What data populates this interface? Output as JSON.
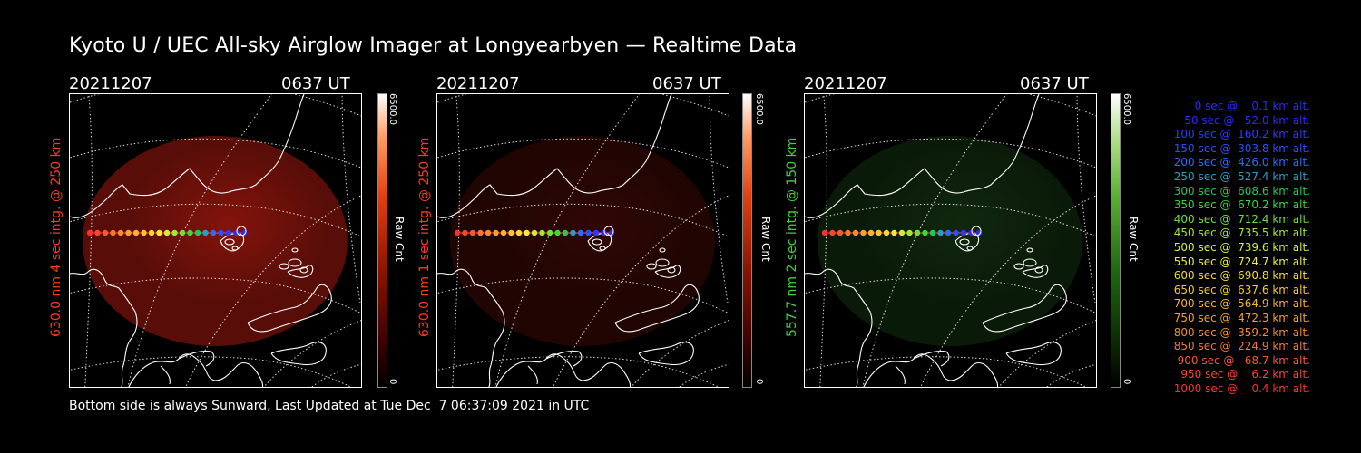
{
  "title": "Kyoto U / UEC All-sky Airglow Imager at Longyearbyen — Realtime Data",
  "footer": "Bottom side is always Sunward, Last Updated at Tue Dec  7 06:37:09 2021 in UTC",
  "colors": {
    "red_channel": "#ff3b1e",
    "green_channel": "#3fd13f",
    "background": "#000000"
  },
  "panels": [
    {
      "date": "20211207",
      "time": "0637 UT",
      "ylabel": "630.0 nm 4 sec intg. @ 250 km",
      "colorbar_max": "6500.0",
      "colorbar_min": "0",
      "colorbar_label": "Raw Cnt",
      "channel": "red",
      "brightness": 0.55
    },
    {
      "date": "20211207",
      "time": "0637 UT",
      "ylabel": "630.0 nm 1 sec intg. @ 250 km",
      "colorbar_max": "6500.0",
      "colorbar_min": "0",
      "colorbar_label": "Raw Cnt",
      "channel": "red",
      "brightness": 0.2
    },
    {
      "date": "20211207",
      "time": "0637 UT",
      "ylabel": "557.7 nm 2 sec intg. @ 150 km",
      "colorbar_max": "6500.0",
      "colorbar_min": "0",
      "colorbar_label": "Raw Cnt",
      "channel": "green",
      "brightness": 0.22
    }
  ],
  "legend": [
    {
      "text": "   0 sec @    0.1 km alt.",
      "color": "#2a2aff"
    },
    {
      "text": "  50 sec @   52.0 km alt.",
      "color": "#2a2aff"
    },
    {
      "text": " 100 sec @  160.2 km alt.",
      "color": "#2a3cff"
    },
    {
      "text": " 150 sec @  303.8 km alt.",
      "color": "#2a50ff"
    },
    {
      "text": " 200 sec @  426.0 km alt.",
      "color": "#2a6cff"
    },
    {
      "text": " 250 sec @  527.4 km alt.",
      "color": "#2a9cc8"
    },
    {
      "text": " 300 sec @  608.6 km alt.",
      "color": "#22c85a"
    },
    {
      "text": " 350 sec @  670.2 km alt.",
      "color": "#3cd83c"
    },
    {
      "text": " 400 sec @  712.4 km alt.",
      "color": "#6ee03a"
    },
    {
      "text": " 450 sec @  735.5 km alt.",
      "color": "#a0e83a"
    },
    {
      "text": " 500 sec @  739.6 km alt.",
      "color": "#d2ec3a"
    },
    {
      "text": " 550 sec @  724.7 km alt.",
      "color": "#ecec3a"
    },
    {
      "text": " 600 sec @  690.8 km alt.",
      "color": "#f5dc32"
    },
    {
      "text": " 650 sec @  637.6 km alt.",
      "color": "#f5c832"
    },
    {
      "text": " 700 sec @  564.9 km alt.",
      "color": "#f5b432"
    },
    {
      "text": " 750 sec @  472.3 km alt.",
      "color": "#f5a032"
    },
    {
      "text": " 800 sec @  359.2 km alt.",
      "color": "#f58c32"
    },
    {
      "text": " 850 sec @  224.9 km alt.",
      "color": "#f57832"
    },
    {
      "text": " 900 sec @   68.7 km alt.",
      "color": "#f55a32"
    },
    {
      "text": " 950 sec @    6.2 km alt.",
      "color": "#f54632"
    },
    {
      "text": "1000 sec @    0.4 km alt.",
      "color": "#f53232"
    }
  ]
}
